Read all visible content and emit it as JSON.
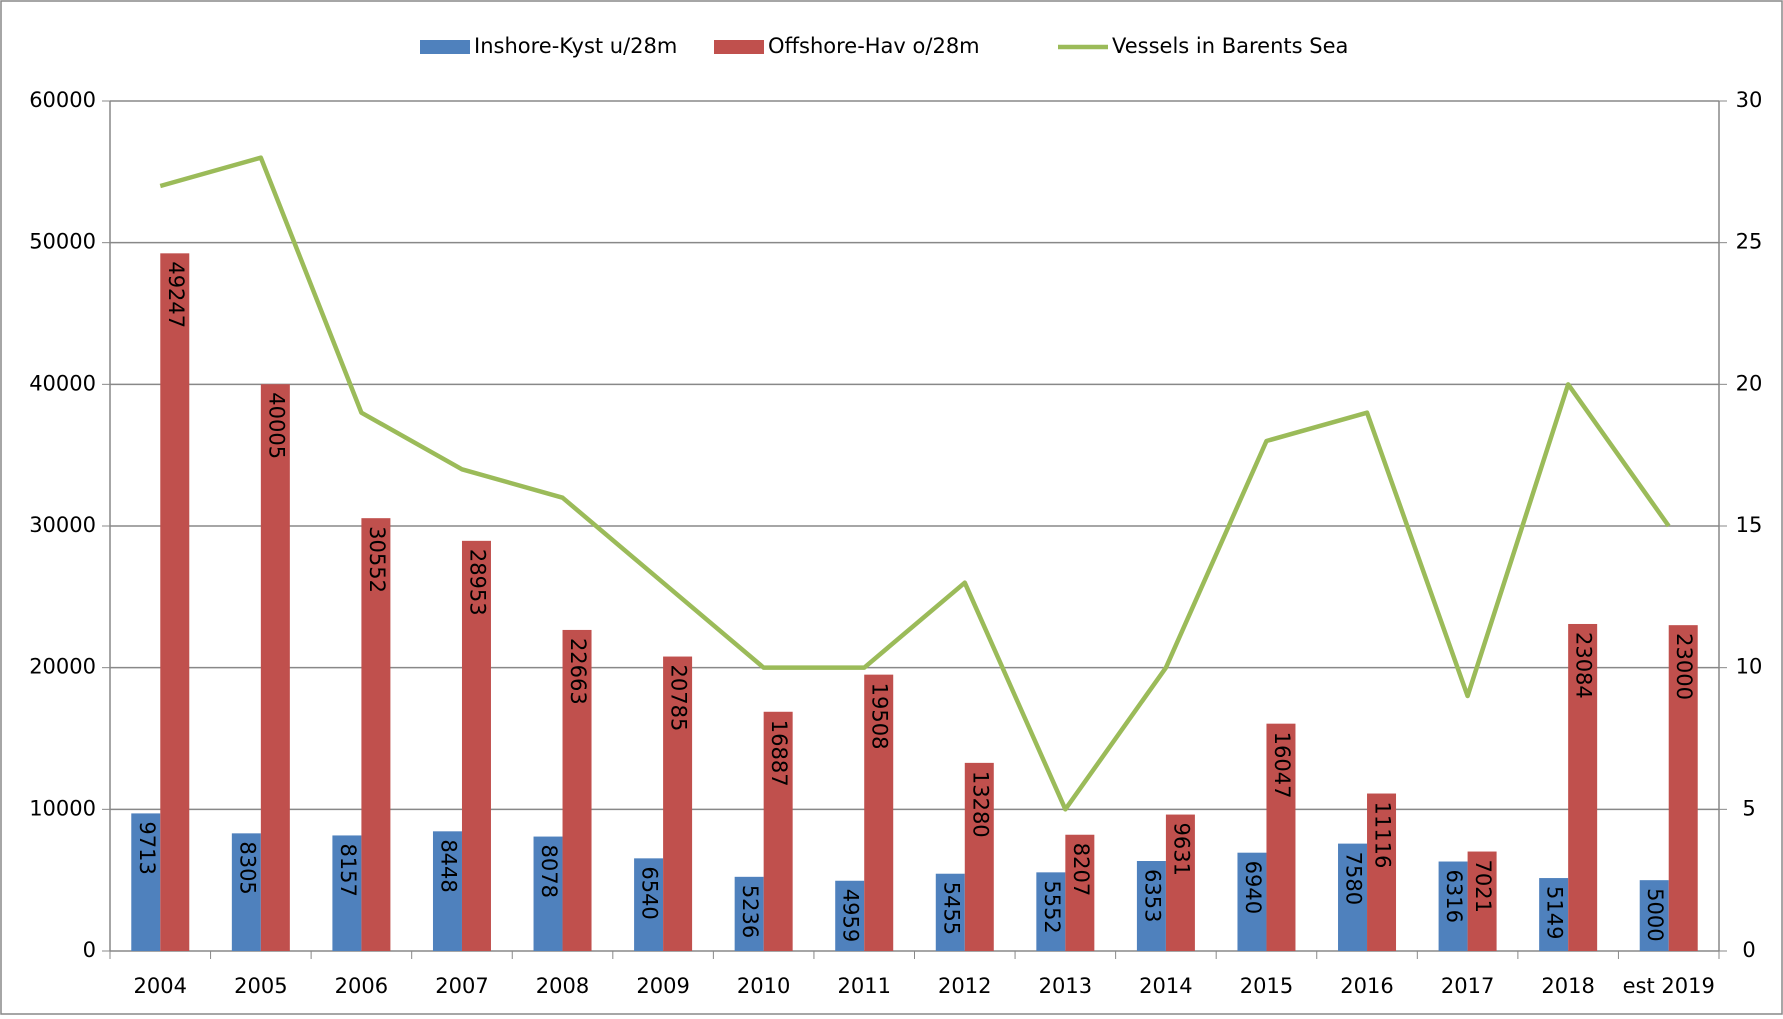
{
  "chart_data": {
    "type": "bar",
    "categories": [
      "2004",
      "2005",
      "2006",
      "2007",
      "2008",
      "2009",
      "2010",
      "2011",
      "2012",
      "2013",
      "2014",
      "2015",
      "2016",
      "2017",
      "2018",
      "est 2019"
    ],
    "series": [
      {
        "name": "Inshore-Kyst u/28m",
        "color": "#4f81bd",
        "values": [
          9713,
          8305,
          8157,
          8448,
          8078,
          6540,
          5236,
          4959,
          5455,
          5552,
          6353,
          6940,
          7580,
          6316,
          5149,
          5000
        ]
      },
      {
        "name": "Offshore-Hav o/28m",
        "color": "#c0504d",
        "values": [
          49247,
          40005,
          30552,
          28953,
          22663,
          20785,
          16887,
          19508,
          13280,
          8207,
          9631,
          16047,
          11116,
          7021,
          23084,
          23000
        ]
      },
      {
        "name": "Vessels in Barents Sea",
        "color": "#9bbb59",
        "type": "line",
        "axis": "y2",
        "values": [
          27,
          28,
          19,
          17,
          16,
          13,
          10,
          10,
          13,
          5,
          10,
          18,
          19,
          9,
          20,
          15
        ]
      }
    ],
    "ylim": [
      0,
      60000
    ],
    "yticks": [
      0,
      10000,
      20000,
      30000,
      40000,
      50000,
      60000
    ],
    "y2lim": [
      0,
      30
    ],
    "y2ticks": [
      0,
      5,
      10,
      15,
      20,
      25,
      30
    ],
    "grid": true,
    "legend": "top"
  }
}
